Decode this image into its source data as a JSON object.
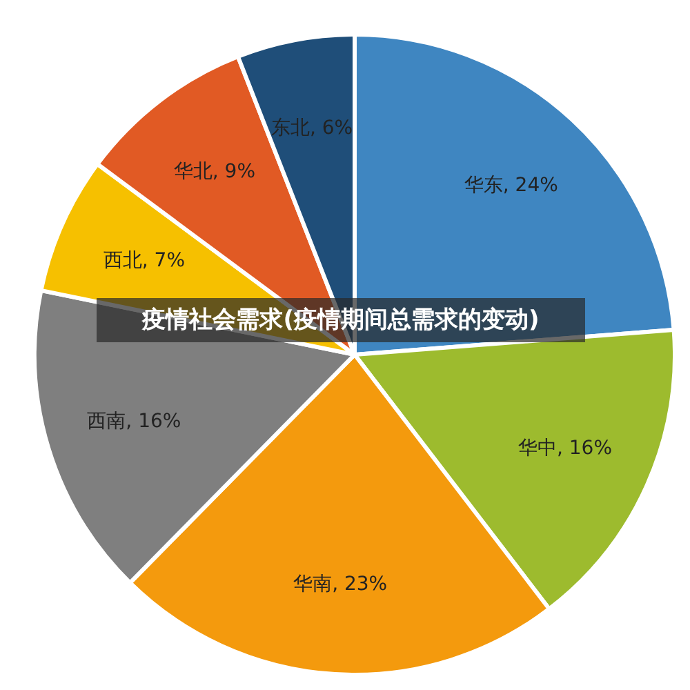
{
  "chart_data": {
    "type": "pie",
    "title": "疫情社会需求(疫情期间总需求的变动)",
    "categories": [
      "华东",
      "华中",
      "华南",
      "西南",
      "西北",
      "华北",
      "东北"
    ],
    "values": [
      24,
      16,
      23,
      16,
      7,
      9,
      6
    ],
    "value_labels": [
      "24%",
      "16%",
      "23%",
      "16%",
      "7%",
      "9%",
      "6%"
    ],
    "colors": [
      "#3f86c1",
      "#9dbb2e",
      "#f49a0d",
      "#7f7f7f",
      "#f6c000",
      "#e15a24",
      "#1f4e79"
    ],
    "legend": false
  }
}
